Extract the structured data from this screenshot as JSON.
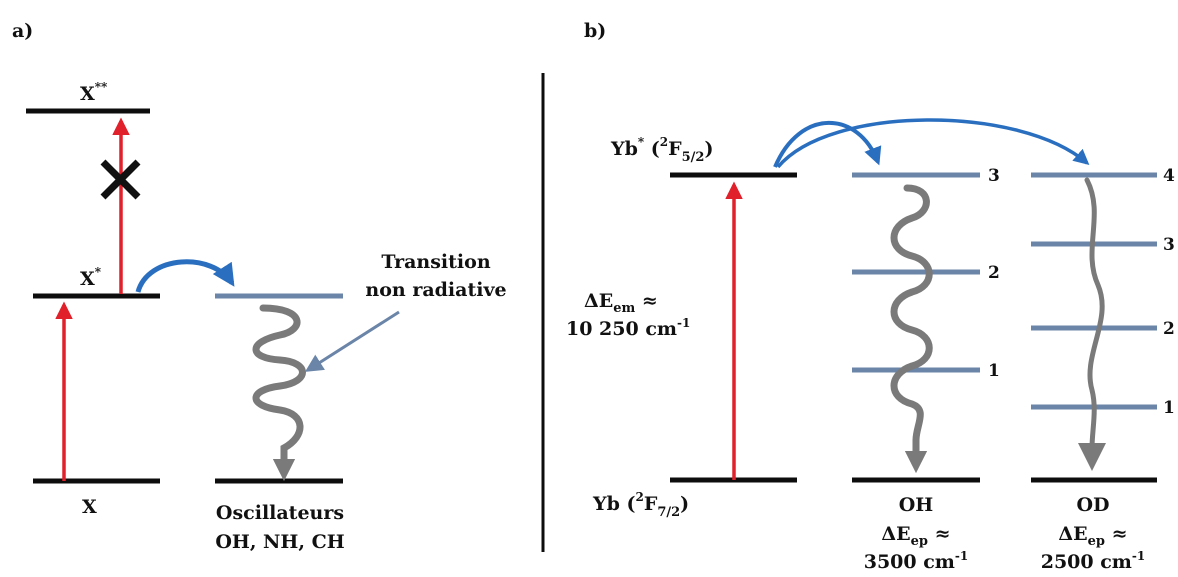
{
  "colors": {
    "ground_line": "#0d0d0d",
    "level_line": "#6a85a8",
    "excitation_arrow": "#e0202a",
    "transfer_arrow": "#2a6fbf",
    "relaxation_arrow": "#7a7a7a",
    "pointer_arrow": "#6a85a8",
    "cross": "#111111"
  },
  "panel_a": {
    "label": "a)",
    "state_x2_main": "X",
    "state_x2_sup": "**",
    "state_x1_main": "X",
    "state_x1_sup": "*",
    "state_x0": "X",
    "annotation_line1": "Transition",
    "annotation_line2": "non radiative",
    "oscillators_line1": "Oscillateurs",
    "oscillators_line2": "OH, NH, CH"
  },
  "panel_b": {
    "label": "b)",
    "yb_excited": {
      "main": "Yb",
      "sup": "*",
      "open": " (",
      "term_sup": "2",
      "term": "F",
      "term_sub": "5/2",
      "close": ")"
    },
    "yb_ground": {
      "main": "Yb",
      "open": " (",
      "term_sup": "2",
      "term": "F",
      "term_sub": "7/2",
      "close": ")"
    },
    "delta_em": {
      "symbol": "ΔE",
      "sub": "em",
      "approx": " ≈",
      "value": "10 250 cm",
      "exp": "-1"
    },
    "oh": {
      "name": "OH",
      "delta_symbol": "ΔE",
      "delta_sub": "ep",
      "approx": " ≈",
      "value": "3500 cm",
      "exp": "-1",
      "levels": [
        "3",
        "2",
        "1"
      ]
    },
    "od": {
      "name": "OD",
      "delta_symbol": "ΔE",
      "delta_sub": "ep",
      "approx": " ≈",
      "value": "2500 cm",
      "exp": "-1",
      "levels": [
        "4",
        "3",
        "2",
        "1"
      ]
    }
  }
}
